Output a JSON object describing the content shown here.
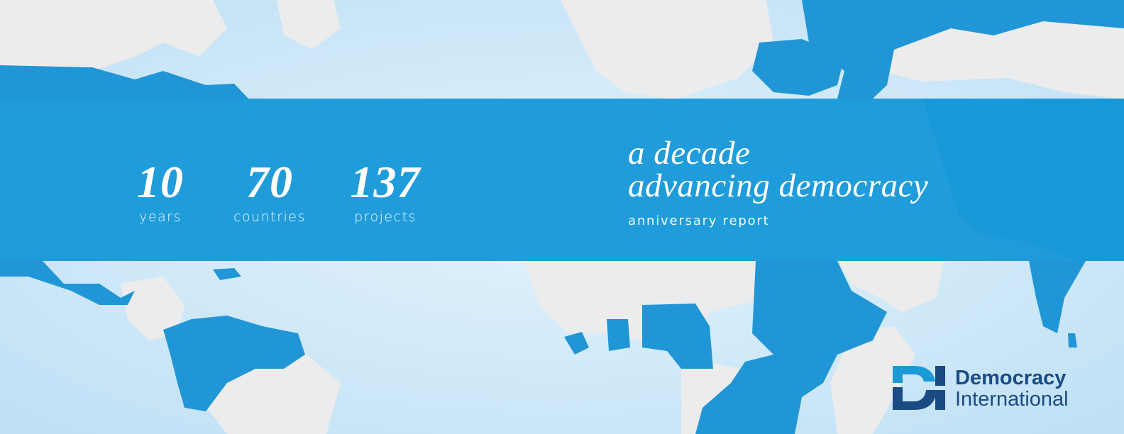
{
  "stats": [
    {
      "number": "10",
      "label": "years"
    },
    {
      "number": "70",
      "label": "countries"
    },
    {
      "number": "137",
      "label": "projects"
    }
  ],
  "headline": {
    "line1": "a decade",
    "line2": "advancing democracy"
  },
  "subtitle": "anniversary report",
  "logo": {
    "line1": "Democracy",
    "line2": "International"
  },
  "colors": {
    "ocean": "#cfe9f9",
    "land": "#ececec",
    "highlight": "#2196d6",
    "band": "#1898d8",
    "logo_blue": "#1a4b84",
    "logo_light": "#1b9ad6"
  }
}
